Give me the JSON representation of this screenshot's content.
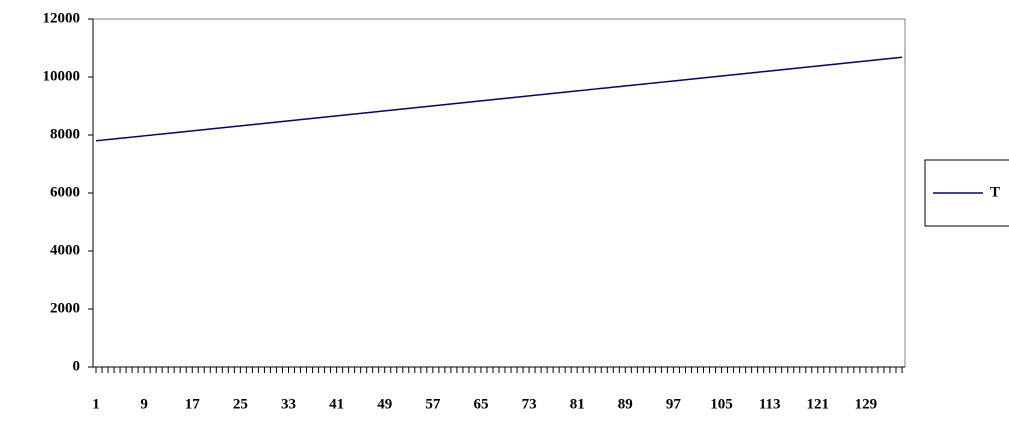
{
  "chart_data": {
    "type": "line",
    "x": [
      1,
      2,
      3,
      4,
      5,
      6,
      7,
      8,
      9,
      10,
      11,
      12,
      13,
      14,
      15,
      16,
      17,
      18,
      19,
      20,
      21,
      22,
      23,
      24,
      25,
      26,
      27,
      28,
      29,
      30,
      31,
      32,
      33,
      34,
      35,
      36,
      37,
      38,
      39,
      40,
      41,
      42,
      43,
      44,
      45,
      46,
      47,
      48,
      49,
      50,
      51,
      52,
      53,
      54,
      55,
      56,
      57,
      58,
      59,
      60,
      61,
      62,
      63,
      64,
      65,
      66,
      67,
      68,
      69,
      70,
      71,
      72,
      73,
      74,
      75,
      76,
      77,
      78,
      79,
      80,
      81,
      82,
      83,
      84,
      85,
      86,
      87,
      88,
      89,
      90,
      91,
      92,
      93,
      94,
      95,
      96,
      97,
      98,
      99,
      100,
      101,
      102,
      103,
      104,
      105,
      106,
      107,
      108,
      109,
      110,
      111,
      112,
      113,
      114,
      115,
      116,
      117,
      118,
      119,
      120,
      121,
      122,
      123,
      124,
      125,
      126,
      127,
      128,
      129,
      130,
      131,
      132,
      133,
      134,
      135
    ],
    "series": [
      {
        "name": "T",
        "color": "#000080",
        "values": [
          7800,
          7821,
          7843,
          7864,
          7886,
          7907,
          7929,
          7950,
          7972,
          7993,
          8015,
          8036,
          8058,
          8079,
          8101,
          8122,
          8144,
          8165,
          8187,
          8208,
          8230,
          8251,
          8273,
          8294,
          8316,
          8337,
          8359,
          8380,
          8402,
          8423,
          8445,
          8466,
          8488,
          8509,
          8531,
          8552,
          8574,
          8595,
          8617,
          8638,
          8660,
          8681,
          8703,
          8724,
          8746,
          8767,
          8789,
          8810,
          8832,
          8853,
          8875,
          8896,
          8918,
          8939,
          8961,
          8982,
          9004,
          9025,
          9047,
          9068,
          9090,
          9111,
          9133,
          9154,
          9176,
          9197,
          9219,
          9240,
          9262,
          9283,
          9305,
          9326,
          9348,
          9369,
          9391,
          9412,
          9434,
          9455,
          9477,
          9498,
          9520,
          9541,
          9563,
          9584,
          9606,
          9627,
          9649,
          9670,
          9692,
          9713,
          9735,
          9756,
          9778,
          9799,
          9821,
          9842,
          9864,
          9885,
          9907,
          9928,
          9950,
          9971,
          9993,
          10014,
          10036,
          10057,
          10079,
          10100,
          10122,
          10143,
          10165,
          10186,
          10208,
          10229,
          10251,
          10272,
          10294,
          10315,
          10337,
          10358,
          10380,
          10401,
          10423,
          10444,
          10466,
          10487,
          10509,
          10530,
          10552,
          10573,
          10595,
          10616,
          10638,
          10659,
          10681
        ]
      }
    ],
    "xlim": [
      0.5,
      135.5
    ],
    "xticks": [
      1,
      9,
      17,
      25,
      33,
      41,
      49,
      57,
      65,
      73,
      81,
      89,
      97,
      105,
      113,
      121,
      129
    ],
    "ylim": [
      0,
      12000
    ],
    "yticks": [
      0,
      2000,
      4000,
      6000,
      8000,
      10000,
      12000
    ],
    "legend": "right"
  }
}
